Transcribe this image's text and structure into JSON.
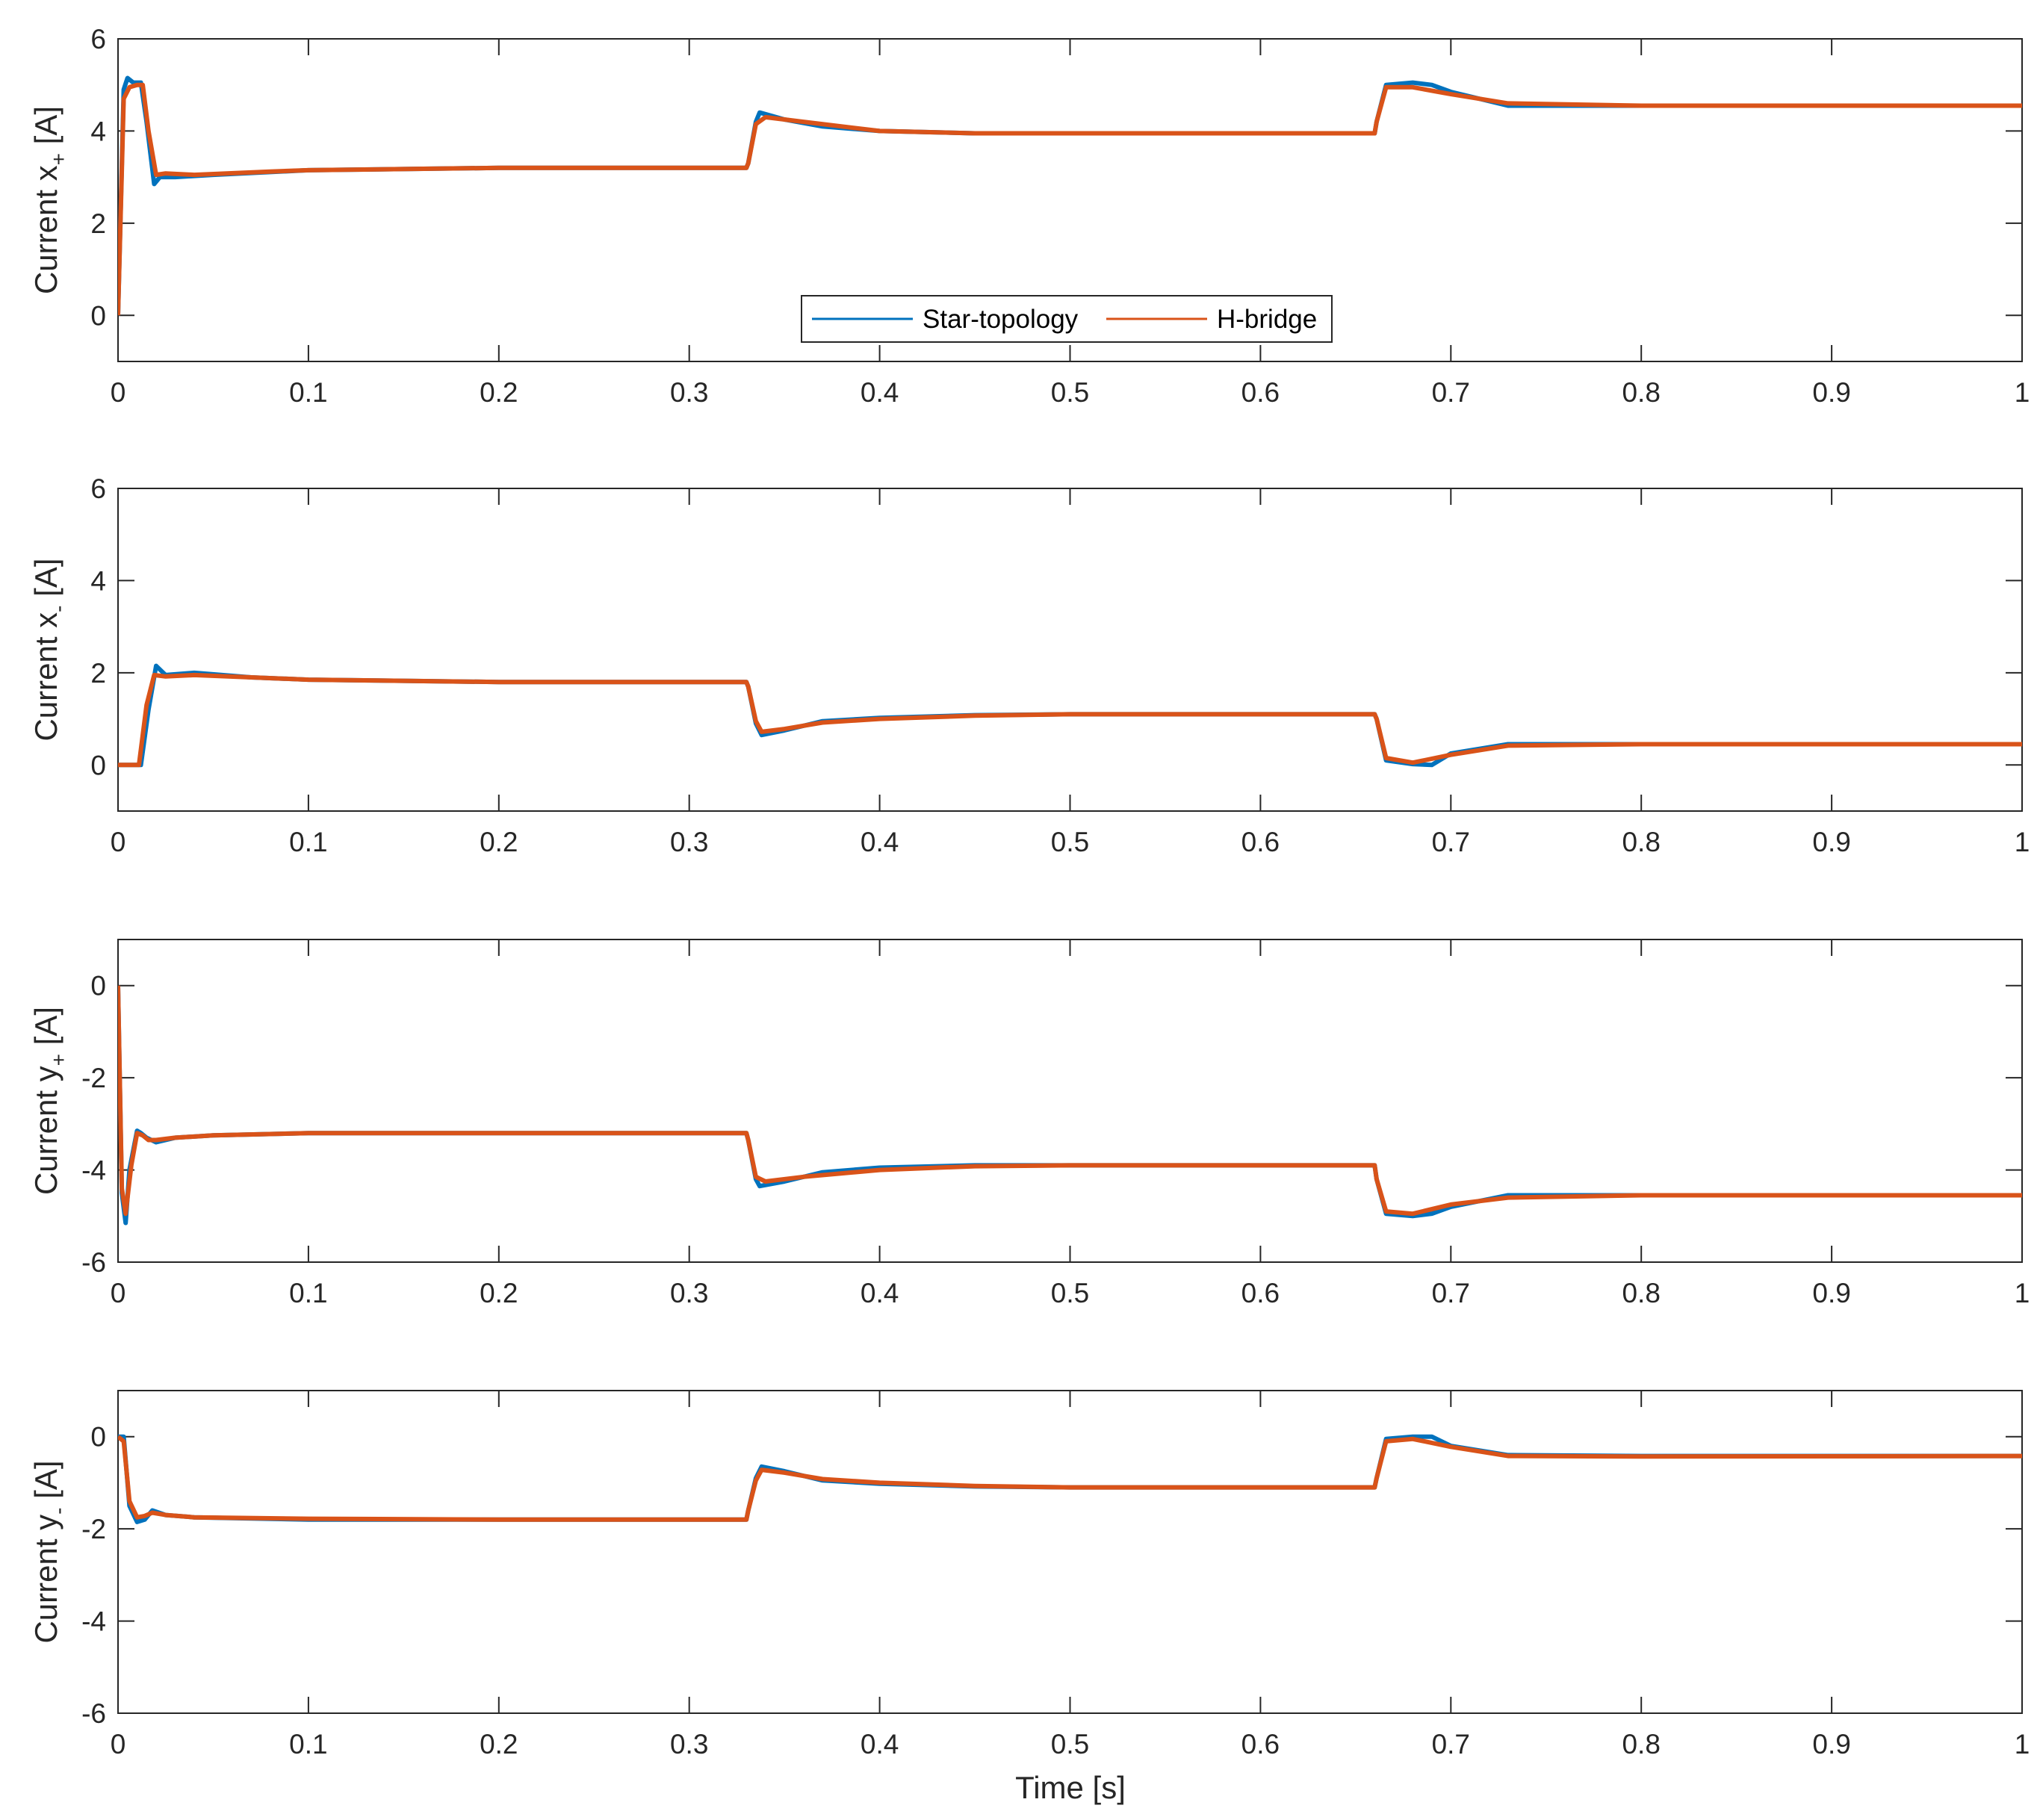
{
  "figure": {
    "xlabel": "Time [s]",
    "colors": {
      "star": "#0072BD",
      "hbridge": "#D95319",
      "axis": "#262626",
      "background": "#ffffff"
    }
  },
  "legend": {
    "entries": [
      "Star-topology",
      "H-bridge"
    ],
    "location": "bottom-center of panel 1"
  },
  "chart_data": [
    {
      "type": "line",
      "ylabel": {
        "main": "Current x",
        "subscript": "+",
        "unit": "[A]"
      },
      "xlim": [
        0,
        1
      ],
      "ylim": [
        -1,
        6
      ],
      "yticks": [
        0,
        2,
        4,
        6
      ],
      "xticks": [
        0,
        0.1,
        0.2,
        0.3,
        0.4,
        0.5,
        0.6,
        0.7,
        0.8,
        0.9,
        1
      ],
      "xticklabels": [
        "0",
        "0.1",
        "0.2",
        "0.3",
        "0.4",
        "0.5",
        "0.6",
        "0.7",
        "0.8",
        "0.9",
        "1"
      ],
      "series": [
        {
          "name": "Star-topology",
          "x": [
            0,
            0.003,
            0.005,
            0.008,
            0.012,
            0.015,
            0.019,
            0.022,
            0.03,
            0.05,
            0.1,
            0.2,
            0.33,
            0.331,
            0.335,
            0.337,
            0.35,
            0.37,
            0.4,
            0.45,
            0.5,
            0.6,
            0.66,
            0.661,
            0.666,
            0.68,
            0.69,
            0.7,
            0.73,
            0.8,
            1.0
          ],
          "y": [
            0.0,
            4.9,
            5.15,
            5.05,
            5.05,
            4.2,
            2.85,
            3.0,
            3.0,
            3.05,
            3.15,
            3.2,
            3.2,
            3.3,
            4.2,
            4.4,
            4.25,
            4.1,
            4.0,
            3.95,
            3.95,
            3.95,
            3.95,
            4.2,
            5.0,
            5.05,
            5.0,
            4.85,
            4.55,
            4.55,
            4.55
          ]
        },
        {
          "name": "H-bridge",
          "x": [
            0,
            0.003,
            0.006,
            0.01,
            0.013,
            0.016,
            0.02,
            0.025,
            0.04,
            0.08,
            0.1,
            0.2,
            0.33,
            0.331,
            0.335,
            0.34,
            0.36,
            0.4,
            0.45,
            0.5,
            0.6,
            0.66,
            0.661,
            0.666,
            0.68,
            0.7,
            0.73,
            0.8,
            1.0
          ],
          "y": [
            0.0,
            4.7,
            4.95,
            5.0,
            5.0,
            4.0,
            3.05,
            3.08,
            3.05,
            3.12,
            3.15,
            3.2,
            3.2,
            3.3,
            4.15,
            4.3,
            4.2,
            4.0,
            3.95,
            3.95,
            3.95,
            3.95,
            4.2,
            4.95,
            4.95,
            4.8,
            4.6,
            4.55,
            4.55
          ]
        }
      ]
    },
    {
      "type": "line",
      "ylabel": {
        "main": "Current x",
        "subscript": "-",
        "unit": "[A]"
      },
      "xlim": [
        0,
        1
      ],
      "ylim": [
        -1,
        6
      ],
      "yticks": [
        0,
        2,
        4,
        6
      ],
      "xticks": [
        0,
        0.1,
        0.2,
        0.3,
        0.4,
        0.5,
        0.6,
        0.7,
        0.8,
        0.9,
        1
      ],
      "xticklabels": [
        "0",
        "0.1",
        "0.2",
        "0.3",
        "0.4",
        "0.5",
        "0.6",
        "0.7",
        "0.8",
        "0.9",
        "1"
      ],
      "series": [
        {
          "name": "Star-topology",
          "x": [
            0,
            0.012,
            0.016,
            0.02,
            0.025,
            0.04,
            0.07,
            0.1,
            0.2,
            0.33,
            0.331,
            0.335,
            0.338,
            0.35,
            0.37,
            0.4,
            0.45,
            0.5,
            0.6,
            0.66,
            0.661,
            0.666,
            0.68,
            0.69,
            0.7,
            0.73,
            0.8,
            1.0
          ],
          "y": [
            0.0,
            0.0,
            1.2,
            2.15,
            1.95,
            2.0,
            1.9,
            1.85,
            1.8,
            1.8,
            1.7,
            0.9,
            0.65,
            0.75,
            0.95,
            1.02,
            1.08,
            1.1,
            1.1,
            1.1,
            1.0,
            0.1,
            0.02,
            0.0,
            0.25,
            0.45,
            0.45,
            0.45
          ]
        },
        {
          "name": "H-bridge",
          "x": [
            0,
            0.011,
            0.015,
            0.019,
            0.025,
            0.04,
            0.07,
            0.1,
            0.2,
            0.33,
            0.331,
            0.335,
            0.338,
            0.35,
            0.37,
            0.4,
            0.45,
            0.5,
            0.6,
            0.66,
            0.661,
            0.666,
            0.68,
            0.7,
            0.73,
            0.8,
            1.0
          ],
          "y": [
            0.0,
            0.0,
            1.3,
            1.95,
            1.92,
            1.95,
            1.9,
            1.85,
            1.8,
            1.8,
            1.7,
            0.95,
            0.72,
            0.78,
            0.92,
            1.0,
            1.07,
            1.1,
            1.1,
            1.1,
            1.0,
            0.15,
            0.05,
            0.22,
            0.42,
            0.45,
            0.45
          ]
        }
      ]
    },
    {
      "type": "line",
      "ylabel": {
        "main": "Current y",
        "subscript": "+",
        "unit": "[A]"
      },
      "xlim": [
        0,
        1
      ],
      "ylim": [
        -6,
        1
      ],
      "yticks": [
        -6,
        -4,
        -2,
        0
      ],
      "xticks": [
        0,
        0.1,
        0.2,
        0.3,
        0.4,
        0.5,
        0.6,
        0.7,
        0.8,
        0.9,
        1
      ],
      "xticklabels": [
        "0",
        "0.1",
        "0.2",
        "0.3",
        "0.4",
        "0.5",
        "0.6",
        "0.7",
        "0.8",
        "0.9",
        "1"
      ],
      "series": [
        {
          "name": "Star-topology",
          "x": [
            0,
            0.002,
            0.004,
            0.006,
            0.01,
            0.012,
            0.015,
            0.02,
            0.03,
            0.05,
            0.1,
            0.2,
            0.33,
            0.331,
            0.335,
            0.337,
            0.35,
            0.37,
            0.4,
            0.45,
            0.5,
            0.6,
            0.66,
            0.661,
            0.666,
            0.68,
            0.69,
            0.7,
            0.73,
            0.8,
            1.0
          ],
          "y": [
            0.0,
            -4.5,
            -5.15,
            -4.0,
            -3.15,
            -3.2,
            -3.3,
            -3.4,
            -3.3,
            -3.25,
            -3.2,
            -3.2,
            -3.2,
            -3.35,
            -4.2,
            -4.35,
            -4.25,
            -4.05,
            -3.95,
            -3.9,
            -3.9,
            -3.9,
            -3.9,
            -4.2,
            -4.95,
            -5.0,
            -4.95,
            -4.8,
            -4.55,
            -4.55,
            -4.55
          ]
        },
        {
          "name": "H-bridge",
          "x": [
            0,
            0.002,
            0.004,
            0.007,
            0.01,
            0.013,
            0.016,
            0.02,
            0.03,
            0.05,
            0.1,
            0.2,
            0.33,
            0.331,
            0.335,
            0.34,
            0.36,
            0.4,
            0.45,
            0.5,
            0.6,
            0.66,
            0.661,
            0.666,
            0.68,
            0.7,
            0.73,
            0.8,
            1.0
          ],
          "y": [
            0.0,
            -4.4,
            -4.95,
            -3.9,
            -3.2,
            -3.25,
            -3.35,
            -3.35,
            -3.3,
            -3.25,
            -3.2,
            -3.2,
            -3.2,
            -3.35,
            -4.15,
            -4.25,
            -4.15,
            -4.0,
            -3.92,
            -3.9,
            -3.9,
            -3.9,
            -4.2,
            -4.9,
            -4.95,
            -4.75,
            -4.6,
            -4.55,
            -4.55
          ]
        }
      ]
    },
    {
      "type": "line",
      "ylabel": {
        "main": "Current y",
        "subscript": "-",
        "unit": "[A]"
      },
      "xlim": [
        0,
        1
      ],
      "ylim": [
        -6,
        1
      ],
      "yticks": [
        -6,
        -4,
        -2,
        0
      ],
      "xticks": [
        0,
        0.1,
        0.2,
        0.3,
        0.4,
        0.5,
        0.6,
        0.7,
        0.8,
        0.9,
        1
      ],
      "xticklabels": [
        "0",
        "0.1",
        "0.2",
        "0.3",
        "0.4",
        "0.5",
        "0.6",
        "0.7",
        "0.8",
        "0.9",
        "1"
      ],
      "series": [
        {
          "name": "Star-topology",
          "x": [
            0,
            0.003,
            0.006,
            0.01,
            0.014,
            0.018,
            0.025,
            0.04,
            0.1,
            0.2,
            0.33,
            0.331,
            0.335,
            0.338,
            0.35,
            0.37,
            0.4,
            0.45,
            0.5,
            0.6,
            0.66,
            0.661,
            0.666,
            0.68,
            0.69,
            0.7,
            0.73,
            0.8,
            1.0
          ],
          "y": [
            0.0,
            0.0,
            -1.5,
            -1.85,
            -1.8,
            -1.6,
            -1.7,
            -1.75,
            -1.8,
            -1.8,
            -1.8,
            -1.6,
            -0.9,
            -0.65,
            -0.75,
            -0.95,
            -1.02,
            -1.08,
            -1.1,
            -1.1,
            -1.1,
            -0.9,
            -0.05,
            0.0,
            0.0,
            -0.2,
            -0.4,
            -0.42,
            -0.42
          ]
        },
        {
          "name": "H-bridge",
          "x": [
            0,
            0.003,
            0.006,
            0.01,
            0.014,
            0.018,
            0.025,
            0.04,
            0.1,
            0.2,
            0.33,
            0.331,
            0.335,
            0.338,
            0.35,
            0.37,
            0.4,
            0.45,
            0.5,
            0.6,
            0.66,
            0.661,
            0.666,
            0.68,
            0.7,
            0.73,
            0.8,
            1.0
          ],
          "y": [
            0.0,
            -0.1,
            -1.4,
            -1.75,
            -1.72,
            -1.65,
            -1.7,
            -1.75,
            -1.78,
            -1.8,
            -1.8,
            -1.6,
            -0.95,
            -0.72,
            -0.78,
            -0.92,
            -1.0,
            -1.07,
            -1.1,
            -1.1,
            -1.1,
            -0.9,
            -0.1,
            -0.05,
            -0.22,
            -0.42,
            -0.43,
            -0.42
          ]
        }
      ]
    }
  ]
}
